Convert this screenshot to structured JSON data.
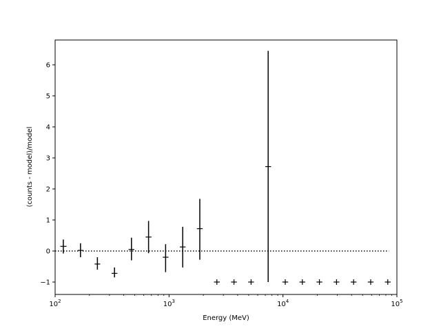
{
  "chart_data": {
    "type": "scatter",
    "title": "",
    "xlabel": "Energy (MeV)",
    "ylabel": "(counts - model)/model",
    "xscale": "log",
    "xlim": [
      100,
      100000
    ],
    "ylim": [
      -1.4,
      6.8
    ],
    "xticks": [
      {
        "base": "10",
        "exp": "2"
      },
      {
        "base": "10",
        "exp": "3"
      },
      {
        "base": "10",
        "exp": "4"
      },
      {
        "base": "10",
        "exp": "5"
      }
    ],
    "yticks": [
      "−1",
      "0",
      "1",
      "2",
      "3",
      "4",
      "5",
      "6"
    ],
    "ytick_values": [
      -1,
      0,
      1,
      2,
      3,
      4,
      5,
      6
    ],
    "reference_line": {
      "y": 0,
      "style": "dotted",
      "x_range": [
        100,
        85000
      ]
    },
    "points": [
      {
        "x": 118,
        "y": 0.15,
        "err_low": -0.08,
        "err_high": 0.37,
        "xw_low": 111,
        "xw_high": 126
      },
      {
        "x": 167,
        "y": 0.02,
        "err_low": -0.2,
        "err_high": 0.25,
        "xw_low": 158,
        "xw_high": 177
      },
      {
        "x": 235,
        "y": -0.42,
        "err_low": -0.6,
        "err_high": -0.2,
        "xw_low": 222,
        "xw_high": 249
      },
      {
        "x": 332,
        "y": -0.72,
        "err_low": -0.85,
        "err_high": -0.53,
        "xw_low": 313,
        "xw_high": 352
      },
      {
        "x": 468,
        "y": 0.05,
        "err_low": -0.3,
        "err_high": 0.43,
        "xw_low": 441,
        "xw_high": 496
      },
      {
        "x": 661,
        "y": 0.45,
        "err_low": -0.07,
        "err_high": 0.97,
        "xw_low": 623,
        "xw_high": 701
      },
      {
        "x": 933,
        "y": -0.2,
        "err_low": -0.68,
        "err_high": 0.22,
        "xw_low": 880,
        "xw_high": 989
      },
      {
        "x": 1318,
        "y": 0.13,
        "err_low": -0.53,
        "err_high": 0.78,
        "xw_low": 1243,
        "xw_high": 1397
      },
      {
        "x": 1862,
        "y": 0.72,
        "err_low": -0.28,
        "err_high": 1.68,
        "xw_low": 1756,
        "xw_high": 1974
      },
      {
        "x": 2630,
        "y": -1.0,
        "err_low": -1.0,
        "err_high": -1.0,
        "xw_low": 2480,
        "xw_high": 2790
      },
      {
        "x": 3715,
        "y": -1.0,
        "err_low": -1.0,
        "err_high": -1.0,
        "xw_low": 3503,
        "xw_high": 3939
      },
      {
        "x": 5248,
        "y": -1.0,
        "err_low": -1.0,
        "err_high": -1.0,
        "xw_low": 4949,
        "xw_high": 5564
      },
      {
        "x": 7413,
        "y": 2.72,
        "err_low": -1.0,
        "err_high": 6.45,
        "xw_low": 6991,
        "xw_high": 7860
      },
      {
        "x": 10471,
        "y": -1.0,
        "err_low": -1.0,
        "err_high": -1.0,
        "xw_low": 9875,
        "xw_high": 11102
      },
      {
        "x": 14791,
        "y": -1.0,
        "err_low": -1.0,
        "err_high": -1.0,
        "xw_low": 13949,
        "xw_high": 15683
      },
      {
        "x": 20893,
        "y": -1.0,
        "err_low": -1.0,
        "err_high": -1.0,
        "xw_low": 19703,
        "xw_high": 22152
      },
      {
        "x": 29512,
        "y": -1.0,
        "err_low": -1.0,
        "err_high": -1.0,
        "xw_low": 27832,
        "xw_high": 31291
      },
      {
        "x": 41687,
        "y": -1.0,
        "err_low": -1.0,
        "err_high": -1.0,
        "xw_low": 39314,
        "xw_high": 44200
      },
      {
        "x": 58884,
        "y": -1.0,
        "err_low": -1.0,
        "err_high": -1.0,
        "xw_low": 55532,
        "xw_high": 62434
      },
      {
        "x": 83176,
        "y": -1.0,
        "err_low": -1.0,
        "err_high": -1.0,
        "xw_low": 78441,
        "xw_high": 88190
      }
    ],
    "grid": false,
    "colors": {
      "marks": "#000000",
      "background": "#ffffff"
    }
  }
}
